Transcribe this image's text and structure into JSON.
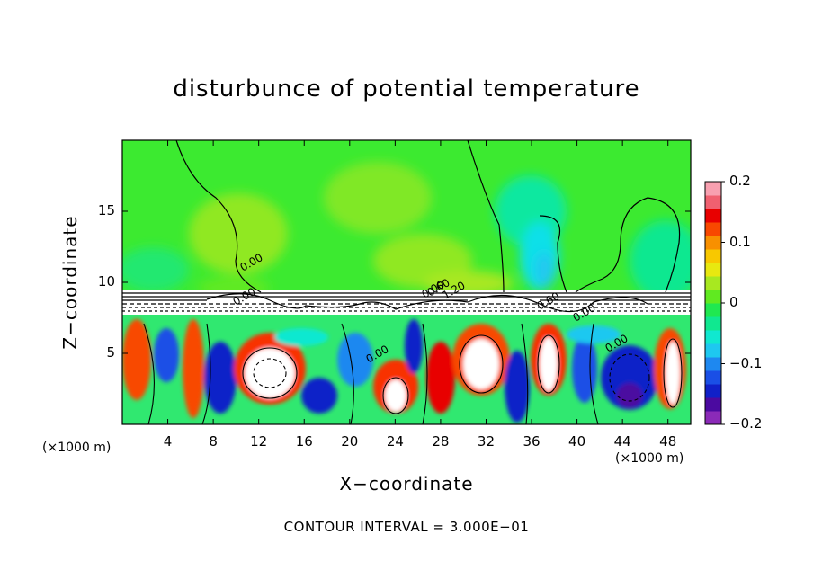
{
  "chart_data": {
    "type": "heatmap",
    "title": "disturbunce of potential temperature",
    "xlabel": "X−coordinate",
    "ylabel": "Z−coordinate",
    "x_unit": "(×1000 m)",
    "x_unit_right": "(×1000 m)",
    "xlim": [
      0,
      50
    ],
    "ylim": [
      0,
      20
    ],
    "x_ticks": [
      4,
      8,
      12,
      16,
      20,
      24,
      28,
      32,
      36,
      40,
      44,
      48
    ],
    "x_tick_labels": [
      "4",
      "8",
      "12",
      "16",
      "20",
      "24",
      "28",
      "32",
      "36",
      "40",
      "44",
      "48"
    ],
    "y_ticks": [
      5,
      10,
      15
    ],
    "y_tick_labels": [
      "5",
      "10",
      "15"
    ],
    "colorbar": {
      "range": [
        -0.2,
        0.2
      ],
      "ticks": [
        0.2,
        0.1,
        0,
        -0.1,
        -0.2
      ],
      "tick_labels": [
        "0.2",
        "0.1",
        "0",
        "−0.1",
        "−0.2"
      ],
      "colors": [
        "#8b2ab8",
        "#4b0aa0",
        "#1020c8",
        "#1a4fe6",
        "#1e88f0",
        "#1ec8f0",
        "#10e8d0",
        "#10e890",
        "#20e850",
        "#60ea20",
        "#a8e820",
        "#e8e810",
        "#f8c800",
        "#f89000",
        "#f84800",
        "#e80000",
        "#f06070",
        "#f8a0b0"
      ]
    },
    "contour_labels": [
      "0.00",
      "0.00",
      "0.00",
      "0.60",
      "0.00",
      "1.20",
      "0.60",
      "0.00",
      "0.00"
    ],
    "contour_interval_text": "CONTOUR INTERVAL = 3.000E−01"
  }
}
